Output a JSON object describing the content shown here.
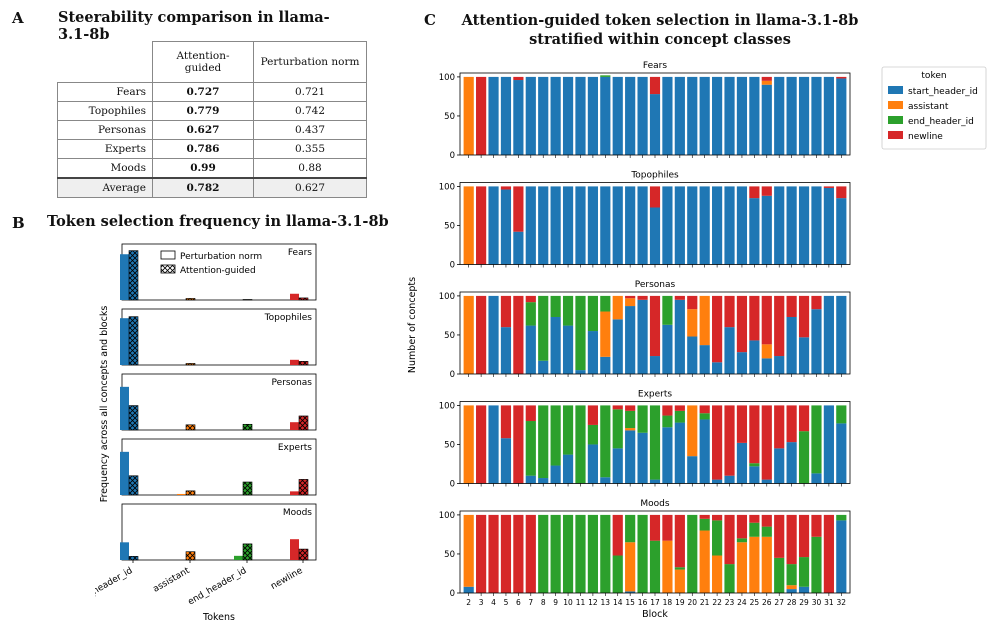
{
  "panels": {
    "a": {
      "letter": "A",
      "title": "Steerability comparison in llama-3.1-8b"
    },
    "b": {
      "letter": "B",
      "title": "Token selection frequency in llama-3.1-8b"
    },
    "c": {
      "letter": "C",
      "title_line1": "Attention-guided token selection in llama-3.1-8b",
      "title_line2": "stratified  within concept classes"
    }
  },
  "table": {
    "headers": [
      "Attention-guided",
      "Perturbation norm"
    ],
    "rows": [
      {
        "label": "Fears",
        "attention": "0.727",
        "perturbation": "0.721"
      },
      {
        "label": "Topophiles",
        "attention": "0.779",
        "perturbation": "0.742"
      },
      {
        "label": "Personas",
        "attention": "0.627",
        "perturbation": "0.437"
      },
      {
        "label": "Experts",
        "attention": "0.786",
        "perturbation": "0.355"
      },
      {
        "label": "Moods",
        "attention": "0.99",
        "perturbation": "0.88"
      }
    ],
    "average": {
      "label": "Average",
      "attention": "0.782",
      "perturbation": "0.627"
    }
  },
  "colors": {
    "start_header_id": "#1f77b4",
    "assistant": "#ff7f0e",
    "end_header_id": "#2ca02c",
    "newline": "#d62728"
  },
  "chart_data": [
    {
      "id": "B",
      "type": "bar",
      "title": "Token selection frequency in llama-3.1-8b",
      "xlabel": "Tokens",
      "ylabel": "Frequency across all concepts and blocks",
      "categories": [
        "start_header_id",
        "assistant",
        "end_header_id",
        "newline"
      ],
      "legend": [
        "Perturbation norm",
        "Attention-guided"
      ],
      "ylim": [
        0,
        1
      ],
      "groups": [
        {
          "name": "Fears",
          "perturbation": [
            0.88,
            0.0,
            0.0,
            0.12
          ],
          "attention": [
            0.95,
            0.03,
            0.01,
            0.04
          ]
        },
        {
          "name": "Topophiles",
          "perturbation": [
            0.9,
            0.0,
            0.0,
            0.1
          ],
          "attention": [
            0.93,
            0.03,
            0.0,
            0.07
          ]
        },
        {
          "name": "Personas",
          "perturbation": [
            0.83,
            0.0,
            0.0,
            0.15
          ],
          "attention": [
            0.47,
            0.1,
            0.11,
            0.27
          ]
        },
        {
          "name": "Experts",
          "perturbation": [
            0.83,
            0.02,
            0.0,
            0.07
          ],
          "attention": [
            0.37,
            0.08,
            0.25,
            0.3
          ]
        },
        {
          "name": "Moods",
          "perturbation": [
            0.34,
            0.0,
            0.08,
            0.4
          ],
          "attention": [
            0.07,
            0.16,
            0.31,
            0.21
          ]
        }
      ]
    },
    {
      "id": "C",
      "type": "bar",
      "stacked": true,
      "title": "Attention-guided token selection in llama-3.1-8b stratified  within concept classes",
      "xlabel": "Block",
      "ylabel": "Number of concepts",
      "yticks": [
        "0",
        "50",
        "100"
      ],
      "ylim": [
        0,
        105
      ],
      "legend_title": "token",
      "series_names": [
        "start_header_id",
        "assistant",
        "end_header_id",
        "newline"
      ],
      "blocks": [
        "2",
        "3",
        "4",
        "5",
        "6",
        "7",
        "8",
        "9",
        "10",
        "11",
        "12",
        "13",
        "14",
        "15",
        "16",
        "17",
        "18",
        "19",
        "20",
        "21",
        "22",
        "23",
        "24",
        "25",
        "26",
        "27",
        "28",
        "29",
        "30",
        "31",
        "32"
      ],
      "classes": [
        {
          "name": "Fears",
          "start_header_id": [
            0,
            0,
            100,
            100,
            96,
            100,
            100,
            100,
            100,
            100,
            100,
            100,
            100,
            100,
            100,
            78,
            100,
            100,
            100,
            100,
            100,
            100,
            100,
            100,
            90,
            100,
            100,
            100,
            100,
            100,
            98
          ],
          "assistant": [
            100,
            0,
            0,
            0,
            0,
            0,
            0,
            0,
            0,
            0,
            0,
            0,
            0,
            0,
            0,
            0,
            0,
            0,
            0,
            0,
            0,
            0,
            0,
            0,
            5,
            0,
            0,
            0,
            0,
            0,
            0
          ],
          "end_header_id": [
            0,
            0,
            0,
            0,
            0,
            0,
            0,
            0,
            0,
            0,
            0,
            2,
            0,
            0,
            0,
            0,
            0,
            0,
            0,
            0,
            0,
            0,
            0,
            0,
            0,
            0,
            0,
            0,
            0,
            0,
            0
          ],
          "newline": [
            0,
            100,
            0,
            0,
            4,
            0,
            0,
            0,
            0,
            0,
            0,
            0,
            0,
            0,
            0,
            22,
            0,
            0,
            0,
            0,
            0,
            0,
            0,
            0,
            5,
            0,
            0,
            0,
            0,
            0,
            2
          ]
        },
        {
          "name": "Topophiles",
          "start_header_id": [
            0,
            0,
            100,
            96,
            42,
            100,
            100,
            100,
            100,
            100,
            100,
            100,
            100,
            100,
            100,
            73,
            100,
            100,
            100,
            100,
            100,
            100,
            100,
            85,
            88,
            100,
            100,
            100,
            100,
            98,
            85
          ],
          "assistant": [
            100,
            0,
            0,
            0,
            0,
            0,
            0,
            0,
            0,
            0,
            0,
            0,
            0,
            0,
            0,
            0,
            0,
            0,
            0,
            0,
            0,
            0,
            0,
            0,
            0,
            0,
            0,
            0,
            0,
            0,
            0
          ],
          "end_header_id": [
            0,
            0,
            0,
            0,
            0,
            0,
            0,
            0,
            0,
            0,
            0,
            0,
            0,
            0,
            0,
            0,
            0,
            0,
            0,
            0,
            0,
            0,
            0,
            0,
            0,
            0,
            0,
            0,
            0,
            0,
            0
          ],
          "newline": [
            0,
            100,
            0,
            4,
            58,
            0,
            0,
            0,
            0,
            0,
            0,
            0,
            0,
            0,
            0,
            27,
            0,
            0,
            0,
            0,
            0,
            0,
            0,
            15,
            12,
            0,
            0,
            0,
            0,
            2,
            15
          ]
        },
        {
          "name": "Personas",
          "start_header_id": [
            0,
            0,
            100,
            60,
            0,
            62,
            17,
            73,
            62,
            5,
            55,
            22,
            70,
            87,
            95,
            23,
            63,
            95,
            48,
            37,
            15,
            60,
            28,
            43,
            20,
            23,
            73,
            47,
            83,
            100,
            100
          ],
          "assistant": [
            100,
            0,
            0,
            0,
            0,
            0,
            0,
            0,
            0,
            0,
            0,
            58,
            30,
            10,
            0,
            0,
            0,
            0,
            35,
            63,
            0,
            0,
            0,
            0,
            18,
            0,
            0,
            0,
            0,
            0,
            0
          ],
          "end_header_id": [
            0,
            0,
            0,
            0,
            0,
            30,
            83,
            27,
            38,
            95,
            45,
            20,
            0,
            0,
            0,
            0,
            37,
            0,
            0,
            0,
            0,
            0,
            0,
            0,
            0,
            0,
            0,
            0,
            0,
            0,
            0
          ],
          "newline": [
            0,
            100,
            0,
            40,
            100,
            8,
            0,
            0,
            0,
            0,
            0,
            0,
            0,
            3,
            5,
            77,
            0,
            5,
            17,
            0,
            85,
            40,
            72,
            57,
            62,
            77,
            27,
            53,
            17,
            0,
            0
          ]
        },
        {
          "name": "Experts",
          "start_header_id": [
            0,
            0,
            100,
            58,
            0,
            10,
            7,
            23,
            37,
            0,
            50,
            8,
            45,
            68,
            65,
            5,
            72,
            78,
            35,
            82,
            5,
            10,
            52,
            22,
            5,
            45,
            53,
            0,
            13,
            100,
            77
          ],
          "assistant": [
            100,
            0,
            0,
            0,
            0,
            0,
            0,
            0,
            0,
            0,
            0,
            0,
            0,
            3,
            0,
            0,
            0,
            0,
            65,
            0,
            0,
            0,
            0,
            0,
            0,
            0,
            0,
            0,
            0,
            0,
            0
          ],
          "end_header_id": [
            0,
            0,
            0,
            0,
            0,
            70,
            93,
            77,
            63,
            100,
            25,
            92,
            50,
            22,
            35,
            95,
            15,
            15,
            0,
            8,
            0,
            0,
            0,
            4,
            0,
            0,
            0,
            67,
            87,
            0,
            23
          ],
          "newline": [
            0,
            100,
            0,
            42,
            100,
            20,
            0,
            0,
            0,
            0,
            25,
            0,
            5,
            7,
            0,
            0,
            13,
            7,
            0,
            10,
            95,
            90,
            48,
            74,
            95,
            55,
            47,
            33,
            0,
            0,
            0
          ]
        },
        {
          "name": "Moods",
          "start_header_id": [
            8,
            0,
            0,
            0,
            0,
            0,
            0,
            0,
            0,
            0,
            0,
            0,
            0,
            2,
            0,
            0,
            0,
            0,
            0,
            0,
            0,
            0,
            0,
            0,
            0,
            0,
            5,
            8,
            0,
            0,
            93
          ],
          "assistant": [
            92,
            0,
            0,
            0,
            0,
            0,
            0,
            0,
            0,
            0,
            0,
            0,
            0,
            63,
            0,
            0,
            67,
            30,
            0,
            80,
            48,
            0,
            65,
            72,
            72,
            0,
            5,
            0,
            0,
            0,
            0
          ],
          "end_header_id": [
            0,
            0,
            0,
            0,
            0,
            0,
            100,
            100,
            100,
            100,
            100,
            100,
            48,
            35,
            100,
            67,
            0,
            3,
            100,
            15,
            45,
            37,
            5,
            18,
            13,
            45,
            27,
            38,
            72,
            0,
            7
          ],
          "newline": [
            0,
            100,
            100,
            100,
            100,
            100,
            0,
            0,
            0,
            0,
            0,
            0,
            52,
            0,
            0,
            33,
            33,
            67,
            0,
            5,
            7,
            63,
            30,
            10,
            15,
            55,
            63,
            54,
            28,
            100,
            0
          ]
        }
      ]
    }
  ]
}
